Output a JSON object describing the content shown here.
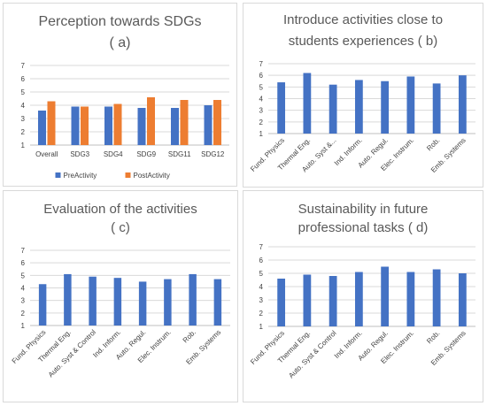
{
  "colors": {
    "pre": "#4472C4",
    "post": "#ED7D31",
    "grid": "#d9d9d9",
    "axis": "#bfbfbf"
  },
  "chart_data": [
    {
      "type": "bar",
      "title": "Perception towards SDGs",
      "subtitle": "(  a)",
      "categories": [
        "Overall",
        "SDG3",
        "SDG4",
        "SDG9",
        "SDG11",
        "SDG12"
      ],
      "series": [
        {
          "name": "PreActivity",
          "values": [
            3.6,
            3.9,
            3.9,
            3.8,
            3.8,
            4.0
          ]
        },
        {
          "name": "PostActivity",
          "values": [
            4.3,
            3.9,
            4.1,
            4.6,
            4.4,
            4.4
          ]
        }
      ],
      "yticks": [
        "1",
        "2",
        "3",
        "4",
        "5",
        "6",
        "7"
      ],
      "ylim": [
        1,
        7
      ],
      "grid": true,
      "legend": "bottom"
    },
    {
      "type": "bar",
      "title": "Introduce activities close to",
      "subtitle": "students experiences (  b)",
      "categories": [
        "Fund. Physics",
        "Thermal Eng.",
        "Auto. Syst &...",
        "Ind. Inform.",
        "Auto. Regul.",
        "Elec. Instrum.",
        "Rob.",
        "Emb. Systems"
      ],
      "series": [
        {
          "values": [
            5.4,
            6.2,
            5.2,
            5.6,
            5.5,
            5.9,
            5.3,
            6.0
          ]
        }
      ],
      "yticks": [
        "1",
        "2",
        "3",
        "4",
        "5",
        "6",
        "7"
      ],
      "ylim": [
        1,
        7
      ],
      "grid": true
    },
    {
      "type": "bar",
      "title": "Evaluation of the activities",
      "subtitle": "(  c)",
      "categories": [
        "Fund. Physics",
        "Thermal Eng.",
        "Auto. Syst & Control",
        "Ind. Inform.",
        "Auto. Regul.",
        "Elec. Instrum.",
        "Rob.",
        "Emb. Systems"
      ],
      "series": [
        {
          "values": [
            4.3,
            5.1,
            4.9,
            4.8,
            4.5,
            4.7,
            5.1,
            4.7
          ]
        }
      ],
      "yticks": [
        "1",
        "2",
        "3",
        "4",
        "5",
        "6",
        "7"
      ],
      "ylim": [
        1,
        7
      ],
      "grid": true
    },
    {
      "type": "bar",
      "title": "Sustainability in future",
      "subtitle": "professional tasks (  d)",
      "categories": [
        "Fund. Physics",
        "Thermal Eng.",
        "Auto. Syst & Control",
        "Ind. Inform.",
        "Auto. Regul.",
        "Elec. Instrum.",
        "Rob.",
        "Emb. Systems"
      ],
      "series": [
        {
          "values": [
            4.6,
            4.9,
            4.8,
            5.1,
            5.5,
            5.1,
            5.3,
            5.0
          ]
        }
      ],
      "yticks": [
        "1",
        "2",
        "3",
        "4",
        "5",
        "6",
        "7"
      ],
      "ylim": [
        1,
        7
      ],
      "grid": true
    }
  ]
}
